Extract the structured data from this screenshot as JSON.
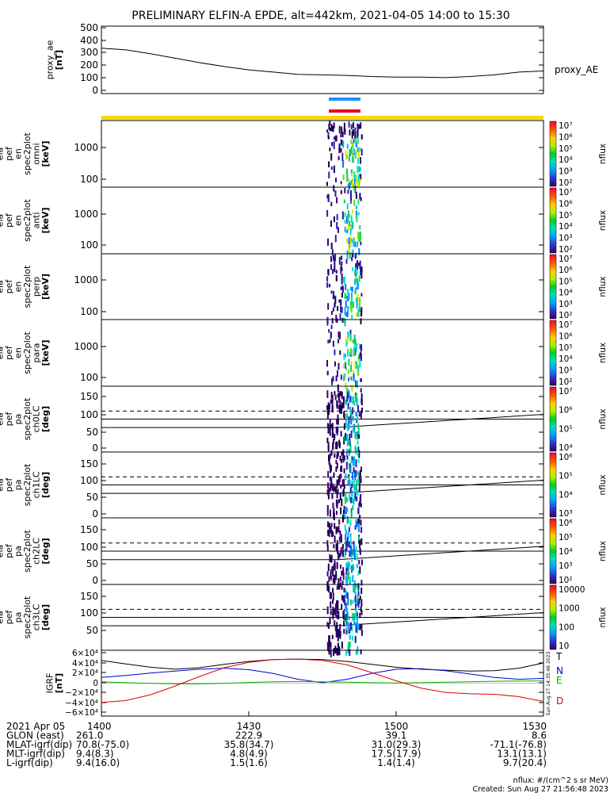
{
  "title": "PRELIMINARY ELFIN-A EPDE, alt=442km, 2021-04-05 14:00 to 15:30",
  "colors": {
    "blue_bar": "#1e90ff",
    "red_bar": "#e8001c",
    "yellow_bar": "#ffd700",
    "green_bar": "#00c000"
  },
  "chart_data": [
    {
      "type": "line",
      "id": "proxy_ae",
      "ylabel_lines": [
        "proxy_ae",
        "[nT]"
      ],
      "legend": "proxy_AE",
      "ylim": [
        0,
        550
      ],
      "yticks": [
        "0",
        "100",
        "200",
        "300",
        "400",
        "500"
      ],
      "x_minutes": [
        0,
        5,
        10,
        15,
        20,
        25,
        30,
        35,
        40,
        45,
        50,
        55,
        60,
        65,
        70,
        75,
        80,
        85,
        90
      ],
      "values": [
        380,
        365,
        330,
        290,
        250,
        215,
        185,
        165,
        145,
        140,
        135,
        125,
        120,
        120,
        115,
        125,
        140,
        165,
        175
      ]
    },
    {
      "type": "heatmap",
      "id": "omni",
      "ylabel_lines": [
        "ela",
        "pef",
        "en",
        "spec2plot",
        "omni",
        "[keV]"
      ],
      "scale": "log",
      "yticks": [
        "100",
        "1000"
      ],
      "colorbar_label": "nflux",
      "colorbar_ticks": [
        "10²",
        "10³",
        "10⁴",
        "10⁵",
        "10⁶",
        "10⁷"
      ]
    },
    {
      "type": "heatmap",
      "id": "anti",
      "ylabel_lines": [
        "ela",
        "pef",
        "en",
        "spec2plot",
        "anti",
        "[keV]"
      ],
      "scale": "log",
      "yticks": [
        "100",
        "1000"
      ],
      "colorbar_label": "nflux",
      "colorbar_ticks": [
        "10²",
        "10³",
        "10⁴",
        "10⁵",
        "10⁶",
        "10⁷"
      ]
    },
    {
      "type": "heatmap",
      "id": "perp",
      "ylabel_lines": [
        "ela",
        "pef",
        "en",
        "spec2plot",
        "perp",
        "[keV]"
      ],
      "scale": "log",
      "yticks": [
        "100",
        "1000"
      ],
      "colorbar_label": "nflux",
      "colorbar_ticks": [
        "10²",
        "10³",
        "10⁴",
        "10⁵",
        "10⁶",
        "10⁷"
      ]
    },
    {
      "type": "heatmap",
      "id": "para",
      "ylabel_lines": [
        "ela",
        "pef",
        "en",
        "spec2plot",
        "para",
        "[keV]"
      ],
      "scale": "log",
      "yticks": [
        "100",
        "1000"
      ],
      "colorbar_label": "nflux",
      "colorbar_ticks": [
        "10²",
        "10³",
        "10⁴",
        "10⁵",
        "10⁶",
        "10⁷"
      ]
    },
    {
      "type": "heatmap",
      "id": "ch0LC",
      "ylabel_lines": [
        "ela",
        "pef",
        "pa",
        "spec2plot",
        "ch0LC",
        "[deg]"
      ],
      "ylim": [
        0,
        180
      ],
      "yticks": [
        "0",
        "50",
        "100",
        "150"
      ],
      "colorbar_label": "nflux",
      "colorbar_ticks": [
        "10⁴",
        "10⁵",
        "10⁶",
        "10⁷"
      ]
    },
    {
      "type": "heatmap",
      "id": "ch1LC",
      "ylabel_lines": [
        "ela",
        "pef",
        "pa",
        "spec2plot",
        "ch1LC",
        "[deg]"
      ],
      "ylim": [
        0,
        180
      ],
      "yticks": [
        "0",
        "50",
        "100",
        "150"
      ],
      "colorbar_label": "nflux",
      "colorbar_ticks": [
        "10³",
        "10⁴",
        "10⁵",
        "10⁶"
      ]
    },
    {
      "type": "heatmap",
      "id": "ch2LC",
      "ylabel_lines": [
        "ela",
        "pef",
        "pa",
        "spec2plot",
        "ch2LC",
        "[deg]"
      ],
      "ylim": [
        0,
        180
      ],
      "yticks": [
        "0",
        "50",
        "100",
        "150"
      ],
      "colorbar_label": "nflux",
      "colorbar_ticks": [
        "10²",
        "10³",
        "10⁴",
        "10⁵",
        "10⁶"
      ]
    },
    {
      "type": "heatmap",
      "id": "ch3LC",
      "ylabel_lines": [
        "ela",
        "pef",
        "pa",
        "spec2plot",
        "ch3LC",
        "[deg]"
      ],
      "ylim": [
        0,
        180
      ],
      "yticks": [
        "50",
        "100",
        "150"
      ],
      "colorbar_label": "nflux",
      "colorbar_ticks": [
        "10",
        "100",
        "1000",
        "10000"
      ]
    },
    {
      "type": "line",
      "id": "igrf",
      "ylabel_lines": [
        "IGRF",
        "[nT]"
      ],
      "ylim": [
        -60000,
        60000
      ],
      "yticks": [
        "−6×10⁴",
        "−4×10⁴",
        "−2×10⁴",
        "0",
        "2×10⁴",
        "4×10⁴",
        "6×10⁴"
      ],
      "x_minutes": [
        0,
        5,
        10,
        15,
        20,
        25,
        30,
        35,
        40,
        45,
        50,
        55,
        60,
        65,
        70,
        75,
        80,
        85,
        90
      ],
      "series": [
        {
          "name": "T",
          "color": "#000000",
          "values": [
            47000,
            40000,
            33000,
            29000,
            32000,
            39000,
            45000,
            49000,
            50000,
            49000,
            45000,
            39000,
            33000,
            29000,
            27000,
            25000,
            26000,
            31000,
            42000
          ]
        },
        {
          "name": "N",
          "color": "#0000d0",
          "values": [
            12000,
            16000,
            21000,
            25000,
            29000,
            31000,
            28000,
            20000,
            8000,
            1000,
            8000,
            20000,
            29000,
            30000,
            26000,
            19000,
            12000,
            8000,
            10000
          ]
        },
        {
          "name": "E",
          "color": "#00b000",
          "values": [
            3000,
            1000,
            -500,
            -1500,
            -1500,
            -500,
            1500,
            3000,
            3500,
            3000,
            2000,
            1000,
            500,
            1000,
            2000,
            3000,
            4000,
            4500,
            4500
          ]
        },
        {
          "name": "D",
          "color": "#e00000",
          "values": [
            -40000,
            -36000,
            -24000,
            -6000,
            14000,
            32000,
            43000,
            49000,
            50000,
            47000,
            38000,
            22000,
            5000,
            -10000,
            -19000,
            -22000,
            -23000,
            -28000,
            -38000
          ]
        }
      ]
    }
  ],
  "time_axis": {
    "labels": [
      "1400",
      "1430",
      "1500",
      "1530"
    ],
    "rows": [
      {
        "label": "2021 Apr 05",
        "values": [
          "1400",
          "1430",
          "1500",
          "1530"
        ]
      },
      {
        "label": "GLON (east)",
        "values": [
          "261.0",
          "222.9",
          "39.1",
          "8.6"
        ]
      },
      {
        "label": "MLAT-igrf(dip)",
        "values": [
          "70.8(-75.0)",
          "35.8(34.7)",
          "31.0(29.3)",
          "-71.1(-76.8)"
        ]
      },
      {
        "label": "MLT-igrf(dip)",
        "values": [
          "9.4(8.3)",
          "4.8(4.9)",
          "17.5(17.9)",
          "13.1(13.1)"
        ]
      },
      {
        "label": "L-igrf(dip)",
        "values": [
          "9.4(16.0)",
          "1.5(1.6)",
          "1.4(1.4)",
          "9.7(20.4)"
        ]
      }
    ]
  },
  "footer": {
    "units": "nflux: #/(cm^2 s sr MeV)",
    "created": "Created: Sun Aug 27 21:56:48 2023",
    "side_stamp": "Sun Aug 27 14:35:46 2023"
  }
}
